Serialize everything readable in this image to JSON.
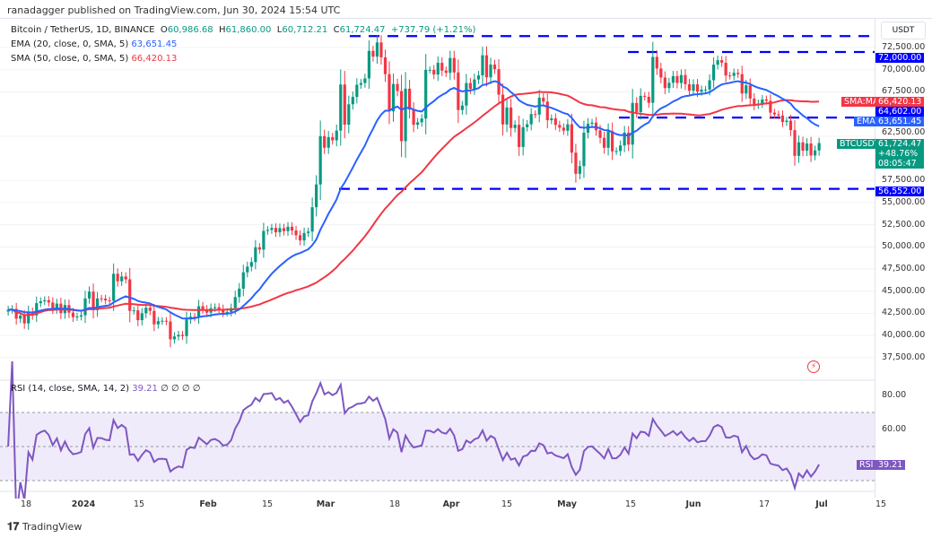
{
  "header": {
    "published": "ranadagger published on TradingView.com, Jun 30, 2024 15:54 UTC"
  },
  "legend": {
    "symbol": "Bitcoin / TetherUS, 1D, BINANCE",
    "o_label": "O",
    "o": "60,986.68",
    "h_label": "H",
    "h": "61,860.00",
    "l_label": "L",
    "l": "60,712.21",
    "c_label": "C",
    "c": "61,724.47",
    "change": "+737.79 (+1.21%)",
    "ema_label": "EMA (20, close, 0, SMA, 5)",
    "ema_value": "63,651.45",
    "sma_label": "SMA (50, close, 0, SMA, 5)",
    "sma_value": "66,420.13",
    "rsi_label": "RSI (14, close, SMA, 14, 2)",
    "rsi_value": "39.21",
    "rsi_extra": "∅ ∅ ∅ ∅"
  },
  "axis": {
    "currency": "USDT",
    "ticks": [
      "72,500.00",
      "70,000.00",
      "67,500.00",
      "62,500.00",
      "57,500.00",
      "55,000.00",
      "52,500.00",
      "50,000.00",
      "47,500.00",
      "45,000.00",
      "42,500.00",
      "40,000.00",
      "37,500.00"
    ],
    "rsi_ticks": [
      "80.00",
      "60.00"
    ]
  },
  "tags": {
    "level_72000": "72,000.00",
    "sma_name": "SMA:MA",
    "sma": "66,420.13",
    "level_64602": "64,602.00",
    "ema_name": "EMA",
    "ema": "63,651.45",
    "symbol": "BTCUSDT",
    "price": "61,724.47",
    "pct": "+48.76%",
    "countdown": "08:05:47",
    "level_56552": "56,552.00",
    "rsi_name": "RSI",
    "rsi": "39.21"
  },
  "x_ticks": [
    "18",
    "2024",
    "15",
    "Feb",
    "15",
    "Mar",
    "18",
    "Apr",
    "15",
    "May",
    "15",
    "Jun",
    "17",
    "Jul",
    "15"
  ],
  "footer": {
    "logo": "TradingView"
  },
  "colors": {
    "up": "#089981",
    "down": "#f23645",
    "ema": "#2962ff",
    "sma": "#f23645",
    "rsi": "#7e57c2",
    "levels": "#0000ff"
  },
  "chart_data": {
    "type": "candlestick",
    "start_date": "2023-12-13",
    "interval": "1D",
    "closes": [
      42900,
      43000,
      41900,
      42250,
      41370,
      42650,
      42270,
      43650,
      43860,
      43990,
      43730,
      43010,
      43600,
      42520,
      43440,
      42580,
      42070,
      42140,
      42280,
      44180,
      44950,
      42850,
      44180,
      44160,
      43970,
      43930,
      46970,
      46120,
      46660,
      46340,
      42780,
      42840,
      41730,
      42510,
      43140,
      42780,
      41260,
      41620,
      41660,
      41580,
      39570,
      39890,
      40080,
      39940,
      41810,
      42120,
      42030,
      43300,
      42950,
      42580,
      43080,
      43190,
      42990,
      42580,
      42660,
      43090,
      44340,
      45290,
      47130,
      47770,
      48290,
      49960,
      49700,
      51800,
      51920,
      52140,
      51650,
      52120,
      51780,
      52280,
      51850,
      51320,
      50730,
      51570,
      51730,
      54480,
      57050,
      62500,
      61200,
      62390,
      62030,
      63130,
      68330,
      63800,
      66100,
      66930,
      68300,
      68500,
      69020,
      72130,
      71480,
      73080,
      71400,
      69500,
      65300,
      68390,
      67600,
      61940,
      67860,
      65500,
      63780,
      64070,
      64490,
      69990,
      69990,
      69460,
      70780,
      69900,
      69650,
      71330,
      69700,
      65450,
      65960,
      68500,
      67840,
      68900,
      69360,
      71630,
      69140,
      70590,
      70060,
      67190,
      63820,
      65740,
      63420,
      63790,
      61280,
      63510,
      63840,
      64990,
      64940,
      66840,
      66400,
      64300,
      64500,
      63770,
      63460,
      63120,
      63840,
      60640,
      58250,
      59120,
      62890,
      63890,
      64030,
      63160,
      62310,
      61190,
      63070,
      60790,
      60820,
      61450,
      62900,
      61550,
      66250,
      65230,
      67050,
      66940,
      66270,
      71450,
      70140,
      69120,
      67930,
      68530,
      69280,
      68500,
      69400,
      68370,
      67630,
      68350,
      67530,
      67760,
      67770,
      68810,
      70570,
      71080,
      70790,
      69350,
      69310,
      69650,
      69500,
      67320,
      68240,
      66750,
      66010,
      66190,
      66640,
      66490,
      65160,
      64960,
      64830,
      64100,
      64250,
      63180,
      60280,
      61800,
      60860,
      61670,
      60320,
      60890,
      61724.47
    ],
    "last_candle": {
      "open": 60986.68,
      "high": 61860.0,
      "low": 60712.21,
      "close": 61724.47
    },
    "indicators": {
      "ema_period": 20,
      "sma_period": 50,
      "rsi_period": 14,
      "rsi_bands": [
        70,
        50,
        30
      ]
    },
    "levels": [
      73800,
      72000,
      64602,
      56552
    ],
    "ylim": [
      36500,
      74500
    ],
    "rsi_ylim": [
      20,
      90
    ]
  }
}
